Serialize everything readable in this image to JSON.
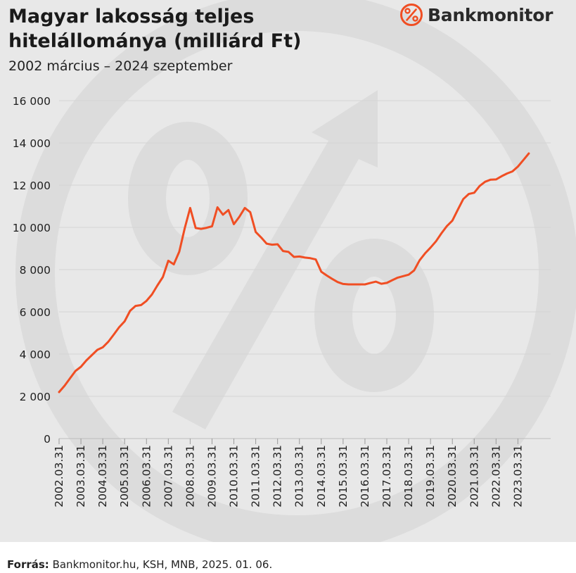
{
  "header": {
    "title": "Magyar lakosság teljes hitelállománya (milliárd Ft)",
    "subtitle": "2002 március – 2024 szeptember"
  },
  "brand": {
    "name": "Bankmonitor",
    "logo_icon": "percent-circle-icon",
    "logo_color": "#f04e23"
  },
  "footer": {
    "source_label": "Forrás:",
    "source_text": "Bankmonitor.hu, KSH, MNB, 2025. 01. 06."
  },
  "colors": {
    "line": "#f04e23",
    "background": "#e8e8e8",
    "watermark": "#dcdcdc",
    "grid": "#d4d4d4"
  },
  "chart_data": {
    "type": "line",
    "title": "Magyar lakosság teljes hitelállománya (milliárd Ft)",
    "subtitle": "2002 március – 2024 szeptember",
    "xlabel": "",
    "ylabel": "",
    "ylim": [
      0,
      16000
    ],
    "yticks": [
      0,
      2000,
      4000,
      6000,
      8000,
      10000,
      12000,
      14000,
      16000
    ],
    "ytick_labels": [
      "0",
      "2 000",
      "4 000",
      "6 000",
      "8 000",
      "10 000",
      "12 000",
      "14 000",
      "16 000"
    ],
    "xlim": [
      2002.25,
      2024.75
    ],
    "xticks": [
      2002.25,
      2003.25,
      2004.25,
      2005.25,
      2006.25,
      2007.25,
      2008.25,
      2009.25,
      2010.25,
      2011.25,
      2012.25,
      2013.25,
      2014.25,
      2015.25,
      2016.25,
      2017.25,
      2018.25,
      2019.25,
      2020.25,
      2021.25,
      2022.25,
      2023.25
    ],
    "xtick_labels": [
      "2002.03.31",
      "2003.03.31",
      "2004.03.31",
      "2005.03.31",
      "2006.03.31",
      "2007.03.31",
      "2008.03.31",
      "2009.03.31",
      "2010.03.31",
      "2011.03.31",
      "2012.03.31",
      "2013.03.31",
      "2014.03.31",
      "2015.03.31",
      "2016.03.31",
      "2017.03.31",
      "2018.03.31",
      "2019.03.31",
      "2020.03.31",
      "2021.03.31",
      "2022.03.31",
      "2023.03.31"
    ],
    "grid": true,
    "series": [
      {
        "x": [
          2002.25,
          2002.5,
          2002.75,
          2003.0,
          2003.25,
          2003.5,
          2003.75,
          2004.0,
          2004.25,
          2004.5,
          2004.75,
          2005.0,
          2005.25,
          2005.5,
          2005.75,
          2006.0,
          2006.25,
          2006.5,
          2006.75,
          2007.0,
          2007.25,
          2007.5,
          2007.75,
          2008.0,
          2008.25,
          2008.5,
          2008.75,
          2009.0,
          2009.25,
          2009.5,
          2009.75,
          2010.0,
          2010.25,
          2010.5,
          2010.75,
          2011.0,
          2011.25,
          2011.5,
          2011.75,
          2012.0,
          2012.25,
          2012.5,
          2012.75,
          2013.0,
          2013.25,
          2013.5,
          2013.75,
          2014.0,
          2014.25,
          2014.5,
          2014.75,
          2015.0,
          2015.25,
          2015.5,
          2015.75,
          2016.0,
          2016.25,
          2016.5,
          2016.75,
          2017.0,
          2017.25,
          2017.5,
          2017.75,
          2018.0,
          2018.25,
          2018.5,
          2018.75,
          2019.0,
          2019.25,
          2019.5,
          2019.75,
          2020.0,
          2020.25,
          2020.5,
          2020.75,
          2021.0,
          2021.25,
          2021.5,
          2021.75,
          2022.0,
          2022.25,
          2022.5,
          2022.75,
          2023.0,
          2023.25,
          2023.5,
          2023.75
        ],
        "values": [
          2200,
          2500,
          2850,
          3200,
          3400,
          3700,
          3950,
          4200,
          4320,
          4580,
          4920,
          5270,
          5550,
          6050,
          6280,
          6320,
          6520,
          6820,
          7250,
          7650,
          8420,
          8250,
          8850,
          9950,
          10920,
          9970,
          9930,
          9980,
          10050,
          10950,
          10600,
          10820,
          10150,
          10500,
          10920,
          10720,
          9780,
          9520,
          9230,
          9180,
          9200,
          8880,
          8840,
          8600,
          8620,
          8570,
          8540,
          8480,
          7900,
          7720,
          7560,
          7410,
          7320,
          7300,
          7300,
          7300,
          7300,
          7370,
          7430,
          7330,
          7370,
          7500,
          7620,
          7690,
          7760,
          7960,
          8440,
          8770,
          9040,
          9340,
          9720,
          10060,
          10320,
          10840,
          11340,
          11580,
          11640,
          11960,
          12160,
          12260,
          12270,
          12420,
          12550,
          12650,
          12880,
          13190,
          13500
        ]
      }
    ]
  }
}
